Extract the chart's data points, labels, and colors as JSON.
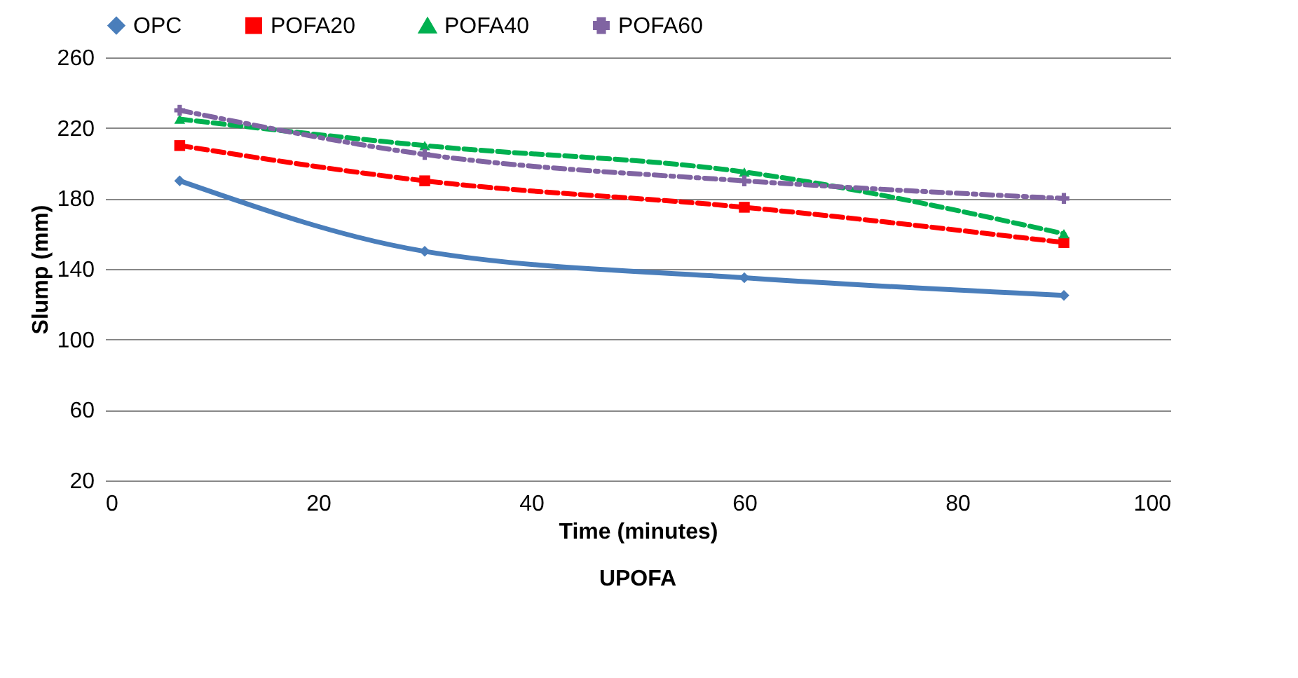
{
  "chart_data": {
    "type": "line",
    "xlabel": "Time (minutes)",
    "ylabel": "Slump (mm)",
    "annotations": [
      "UPOFA"
    ],
    "x": [
      7,
      30,
      60,
      90
    ],
    "series": [
      {
        "name": "OPC",
        "color": "#4a7ebb",
        "values": [
          190,
          150,
          135,
          125
        ],
        "marker": "diamond",
        "line_style": "solid"
      },
      {
        "name": "POFA20",
        "color": "#ff0000",
        "values": [
          210,
          190,
          175,
          155
        ],
        "marker": "square",
        "line_style": "dashed"
      },
      {
        "name": "POFA40",
        "color": "#00b050",
        "values": [
          225,
          210,
          195,
          160
        ],
        "marker": "triangle",
        "line_style": "dashed"
      },
      {
        "name": "POFA60",
        "color": "#8064a2",
        "values": [
          230,
          205,
          190,
          180
        ],
        "marker": "cross",
        "line_style": "dotted"
      }
    ],
    "xlim": [
      0,
      100
    ],
    "xticks": [
      0,
      20,
      40,
      60,
      80,
      100
    ],
    "ylim": [
      20,
      260
    ],
    "yticks": [
      20,
      60,
      100,
      140,
      180,
      220,
      260
    ],
    "grid": "y",
    "legend": "top"
  }
}
